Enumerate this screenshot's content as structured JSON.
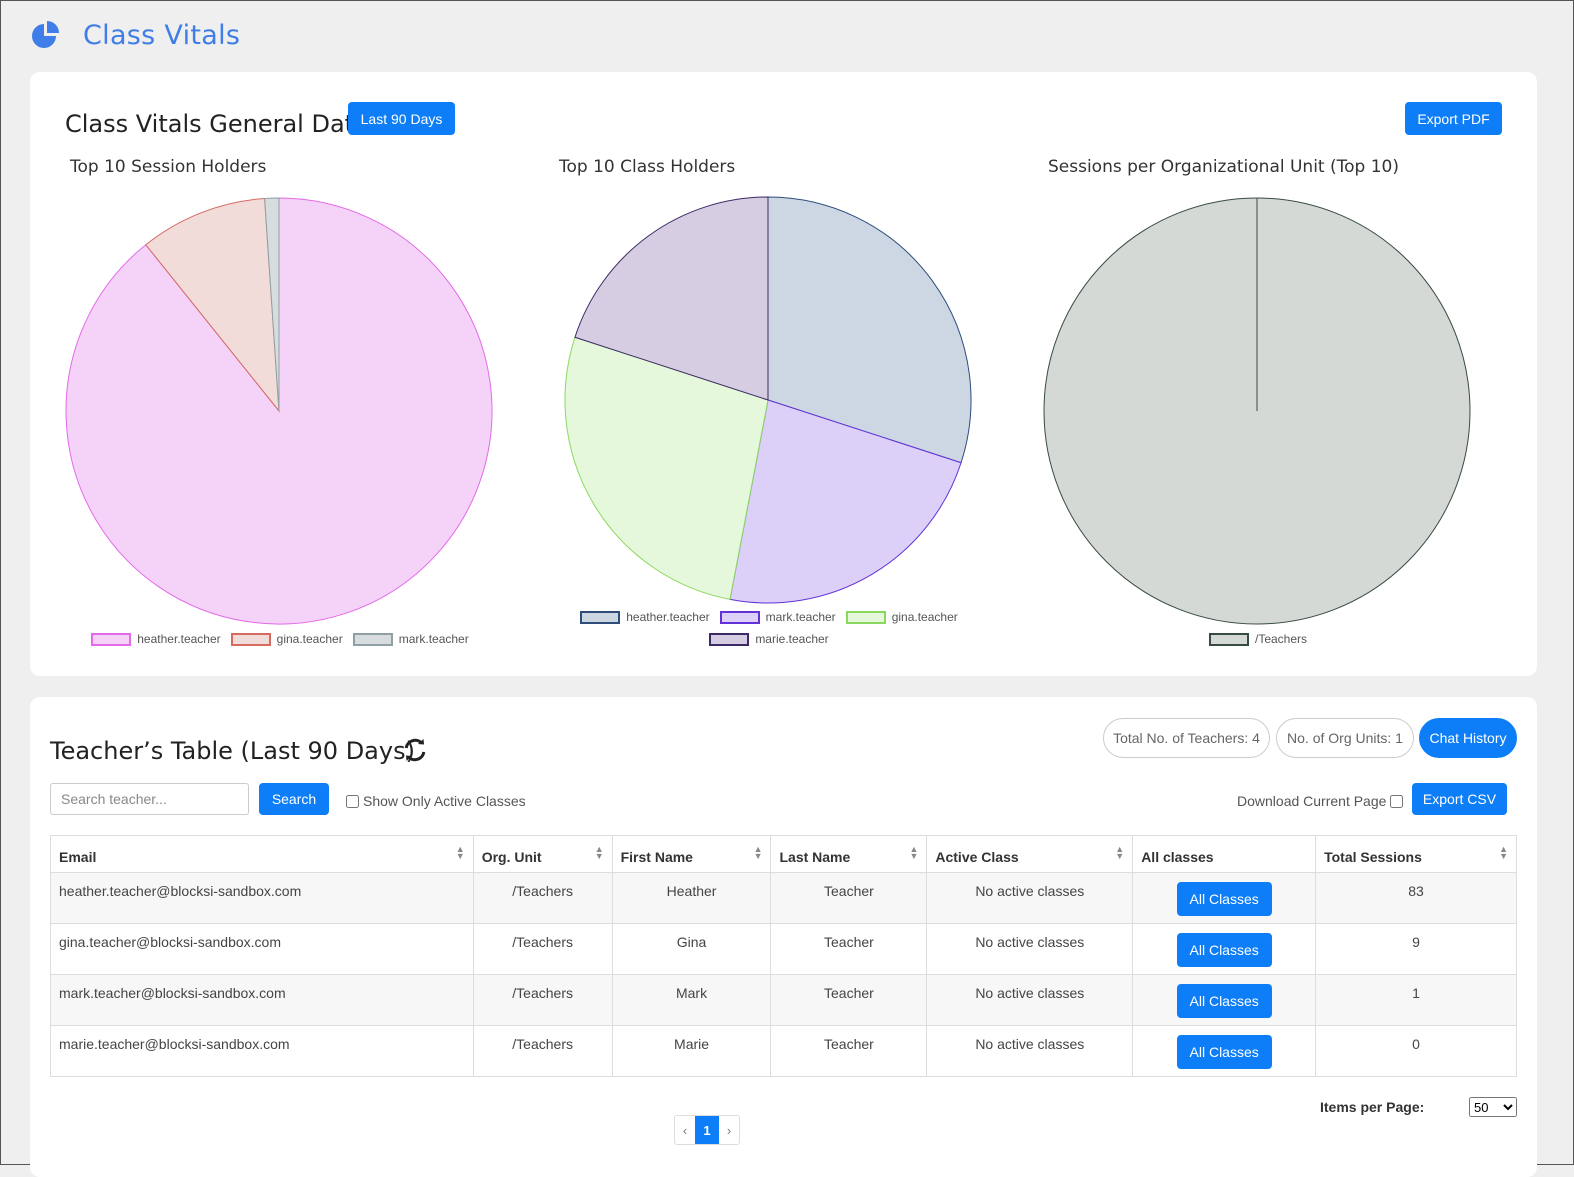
{
  "app": {
    "title": "Class Vitals",
    "icon": "pie-chart-icon"
  },
  "general": {
    "title": "Class Vitals General Data",
    "range_button": "Last 90 Days",
    "export_pdf": "Export PDF"
  },
  "charts": [
    {
      "title": "Top 10 Session Holders",
      "type": "pie",
      "labels": [
        "heather.teacher",
        "gina.teacher",
        "mark.teacher"
      ],
      "values": [
        83,
        9,
        1
      ],
      "fills": [
        "#f5d3f9",
        "#f2dcda",
        "#d7dddf"
      ],
      "strokes": [
        "#e36ae9",
        "#d46a60",
        "#8fa0a5"
      ]
    },
    {
      "title": "Top 10 Class Holders",
      "type": "pie",
      "labels": [
        "heather.teacher",
        "mark.teacher",
        "gina.teacher",
        "marie.teacher"
      ],
      "values": [
        30,
        23,
        27,
        20
      ],
      "fills": [
        "#ccd7e3",
        "#dcd0f8",
        "#e5f8dc",
        "#d6cde2"
      ],
      "strokes": [
        "#2e4d7b",
        "#6232d8",
        "#8bd85f",
        "#3b2a66"
      ]
    },
    {
      "title": "Sessions per Organizational Unit (Top 10)",
      "type": "pie",
      "labels": [
        "/Teachers"
      ],
      "values": [
        93
      ],
      "fills": [
        "#d5d9d6"
      ],
      "strokes": [
        "#384b40"
      ]
    }
  ],
  "table_section": {
    "title": "Teacher’s Table (Last 90 Days)",
    "refresh_icon": "refresh-icon",
    "total_teachers": "Total No. of Teachers: 4",
    "org_units": "No. of Org Units: 1",
    "chat_history": "Chat History",
    "search_placeholder": "Search teacher...",
    "search_button": "Search",
    "active_only_label": "Show Only Active Classes",
    "download_label": "Download Current Page",
    "export_csv": "Export CSV",
    "columns": [
      "Email",
      "Org. Unit",
      "First Name",
      "Last Name",
      "Active Class",
      "All classes",
      "Total Sessions"
    ],
    "rows": [
      {
        "email": "heather.teacher@blocksi-sandbox.com",
        "org": "/Teachers",
        "first": "Heather",
        "last": "Teacher",
        "active": "No active classes",
        "btn": "All Classes",
        "sessions": "83"
      },
      {
        "email": "gina.teacher@blocksi-sandbox.com",
        "org": "/Teachers",
        "first": "Gina",
        "last": "Teacher",
        "active": "No active classes",
        "btn": "All Classes",
        "sessions": "9"
      },
      {
        "email": "mark.teacher@blocksi-sandbox.com",
        "org": "/Teachers",
        "first": "Mark",
        "last": "Teacher",
        "active": "No active classes",
        "btn": "All Classes",
        "sessions": "1"
      },
      {
        "email": "marie.teacher@blocksi-sandbox.com",
        "org": "/Teachers",
        "first": "Marie",
        "last": "Teacher",
        "active": "No active classes",
        "btn": "All Classes",
        "sessions": "0"
      }
    ],
    "items_per_page_label": "Items per Page:",
    "items_per_page_value": "50",
    "pager": {
      "prev": "‹",
      "current": "1",
      "next": "›"
    }
  }
}
